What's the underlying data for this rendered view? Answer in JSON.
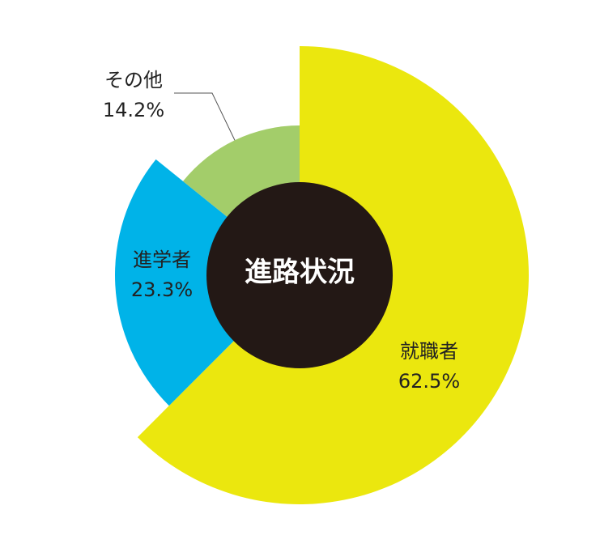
{
  "chart_data": {
    "type": "pie",
    "title": "進路状況",
    "categories": [
      "就職者",
      "進学者",
      "その他"
    ],
    "values": [
      62.5,
      23.3,
      14.2
    ],
    "value_labels": [
      "62.5%",
      "23.3%",
      "14.2%"
    ],
    "colors": [
      "#ebe70e",
      "#00b3e8",
      "#a3cd6a"
    ]
  }
}
